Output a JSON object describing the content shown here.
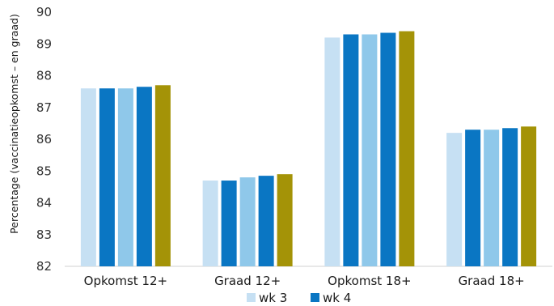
{
  "chart_data": {
    "type": "bar",
    "ylabel": "Percentage (vaccinatieopkomst – en graad)",
    "ylim": [
      82,
      90
    ],
    "yticks": [
      82,
      83,
      84,
      85,
      86,
      87,
      88,
      89,
      90
    ],
    "grid": false,
    "legend_position": "bottom",
    "categories": [
      "Opkomst 12+",
      "Graad 12+",
      "Opkomst 18+",
      "Graad 18+"
    ],
    "series": [
      {
        "name": "wk 3",
        "color": "#c6e0f3",
        "values": [
          87.6,
          84.7,
          89.2,
          86.2
        ]
      },
      {
        "name": "wk 4",
        "color": "#0a76c3",
        "values": [
          87.6,
          84.7,
          89.3,
          86.3
        ]
      },
      {
        "color": "#8fc8ea",
        "values": [
          87.6,
          84.8,
          89.3,
          86.3
        ]
      },
      {
        "color": "#0a76c3",
        "values": [
          87.65,
          84.85,
          89.35,
          86.35
        ]
      },
      {
        "color": "#a49307",
        "values": [
          87.7,
          84.9,
          89.4,
          86.4
        ]
      }
    ]
  }
}
